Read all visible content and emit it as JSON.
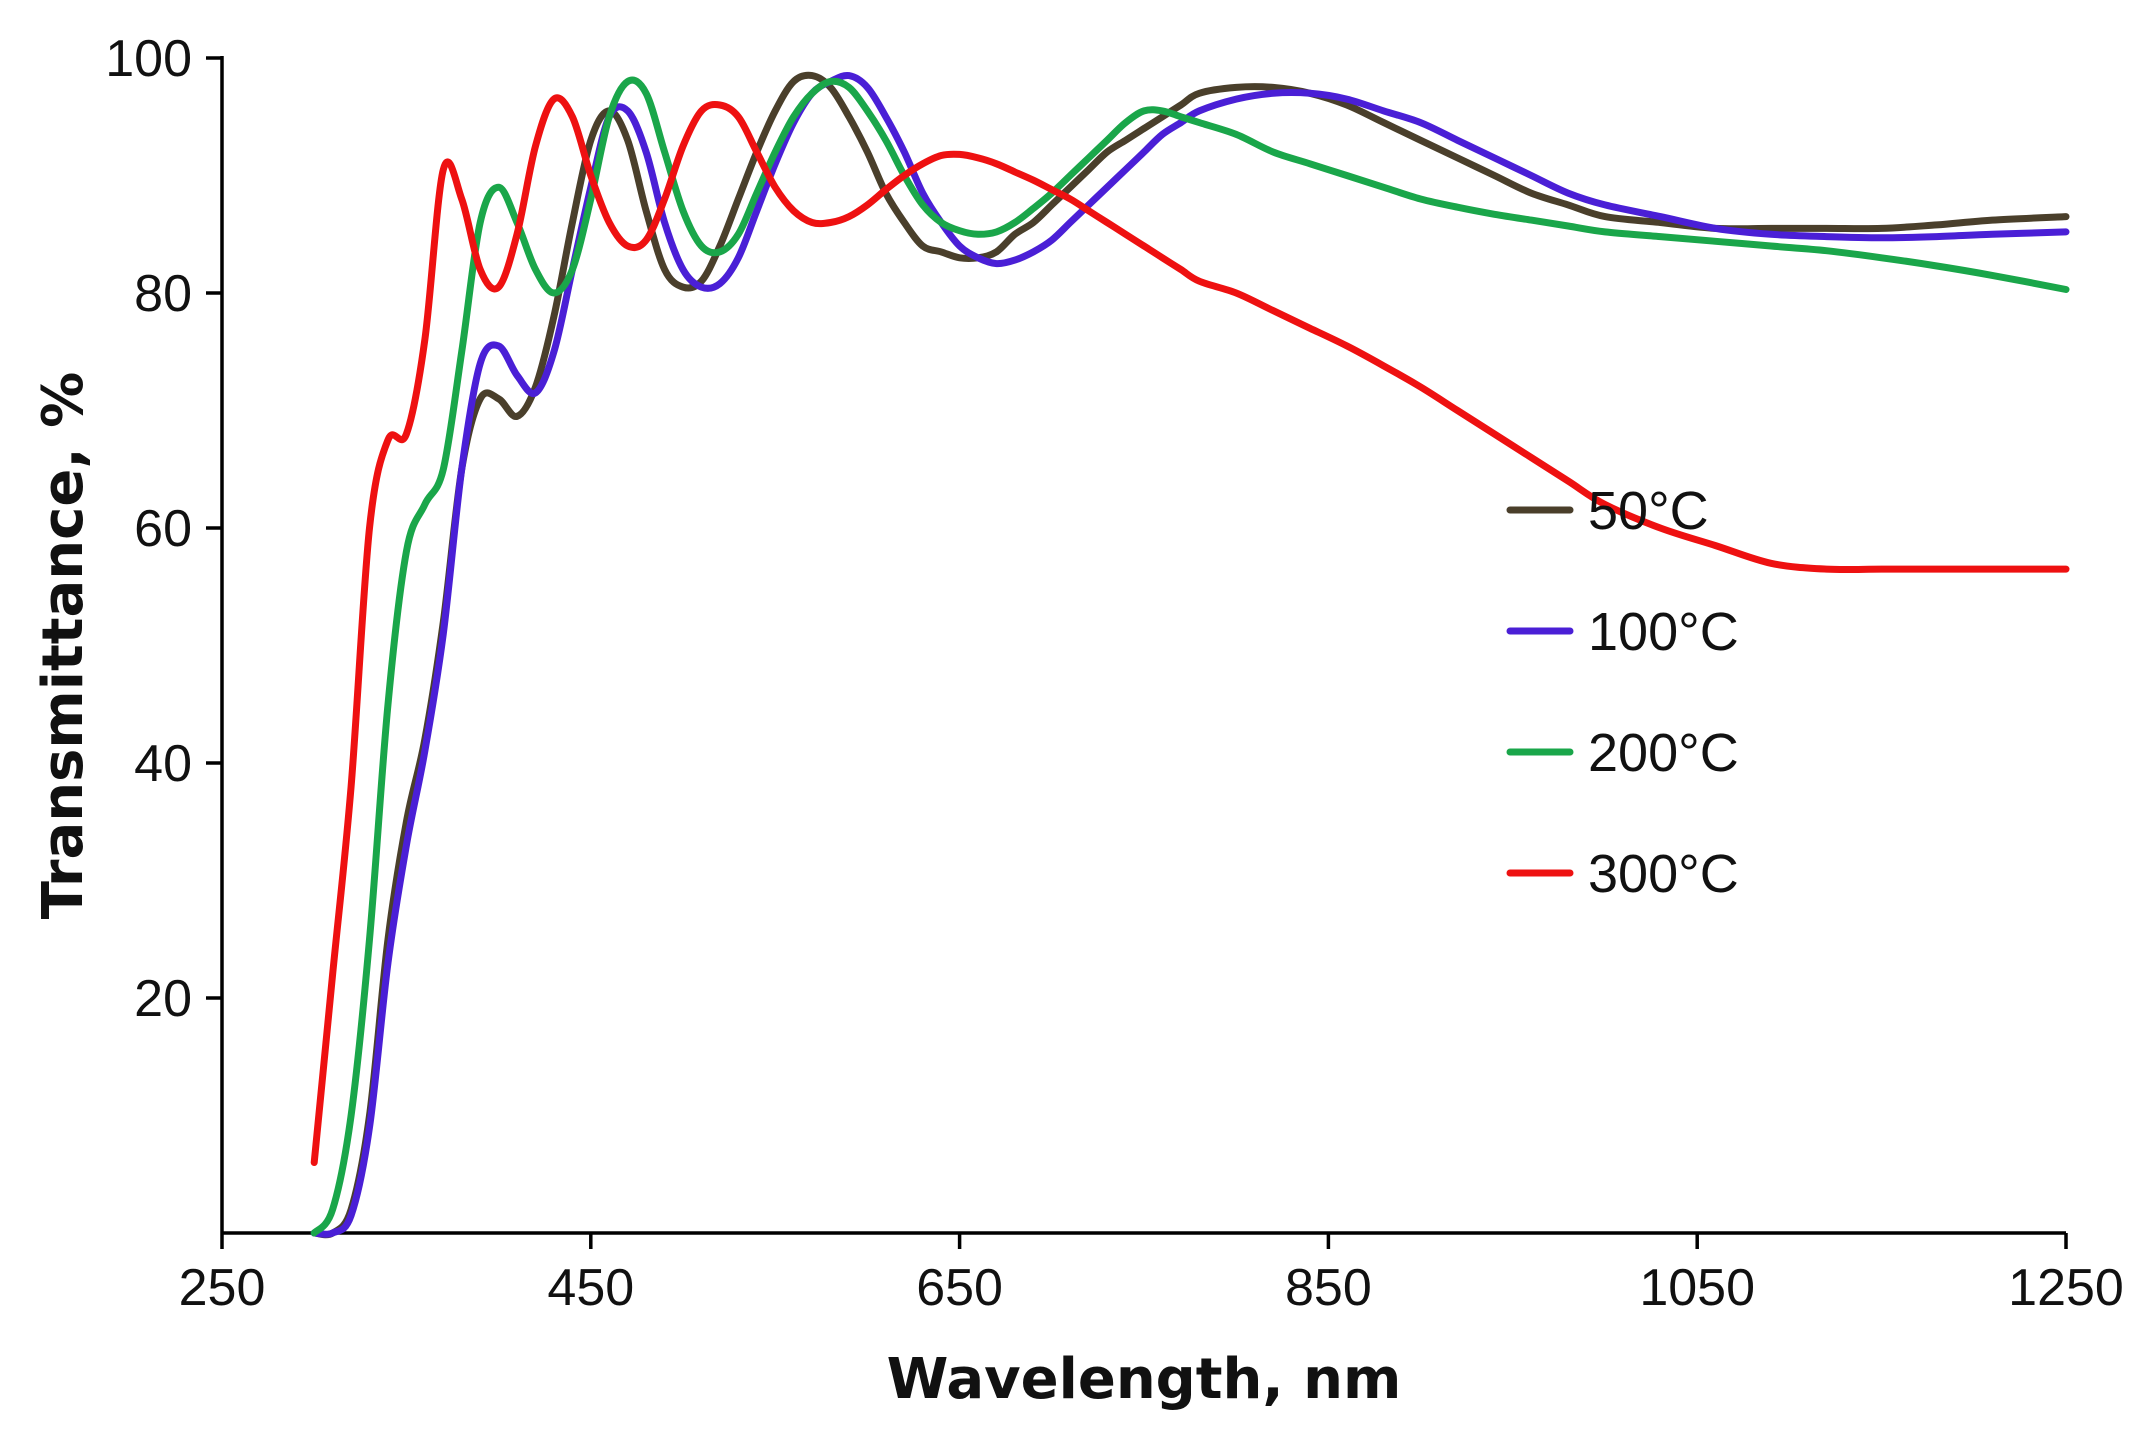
{
  "chart_data": {
    "type": "line",
    "title": "",
    "xlabel": "Wavelength, nm",
    "ylabel": "Transmittance, %",
    "xlim": [
      250,
      1250
    ],
    "ylim": [
      0,
      100
    ],
    "xticks": [
      250,
      450,
      650,
      850,
      1050,
      1250
    ],
    "yticks": [
      20,
      40,
      60,
      80,
      100
    ],
    "grid": false,
    "legend_position": "right-middle",
    "series": [
      {
        "name": "50°C",
        "color": "#4a3f2b",
        "x": [
          300,
          310,
          320,
          330,
          340,
          350,
          360,
          370,
          380,
          390,
          400,
          410,
          420,
          430,
          440,
          450,
          460,
          470,
          480,
          490,
          500,
          510,
          520,
          530,
          540,
          550,
          560,
          570,
          580,
          590,
          600,
          610,
          620,
          630,
          640,
          650,
          660,
          670,
          680,
          690,
          700,
          710,
          720,
          730,
          740,
          750,
          760,
          770,
          780,
          800,
          820,
          840,
          860,
          880,
          900,
          920,
          940,
          960,
          980,
          1000,
          1030,
          1060,
          1090,
          1120,
          1150,
          1180,
          1210,
          1250
        ],
        "y": [
          0,
          0,
          2,
          10,
          25,
          35,
          42,
          52,
          65,
          71,
          71,
          69.5,
          72,
          78,
          86,
          93,
          95.5,
          93,
          87,
          82,
          80.5,
          81,
          84,
          88,
          92,
          95.5,
          98,
          98.5,
          97.5,
          95,
          92,
          88.5,
          86,
          84,
          83.5,
          83,
          83,
          83.5,
          85,
          86,
          87.5,
          89,
          90.5,
          92,
          93,
          94,
          95,
          96,
          97,
          97.5,
          97.5,
          97,
          96,
          94.5,
          93,
          91.5,
          90,
          88.5,
          87.5,
          86.5,
          86,
          85.5,
          85.5,
          85.5,
          85.5,
          85.8,
          86.2,
          86.5
        ]
      },
      {
        "name": "100°C",
        "color": "#4a1fd6",
        "x": [
          300,
          310,
          320,
          330,
          340,
          350,
          360,
          370,
          380,
          390,
          400,
          410,
          420,
          430,
          440,
          450,
          460,
          470,
          480,
          490,
          500,
          510,
          520,
          530,
          540,
          550,
          560,
          570,
          580,
          590,
          600,
          610,
          620,
          630,
          640,
          650,
          660,
          670,
          680,
          690,
          700,
          710,
          720,
          730,
          740,
          750,
          760,
          770,
          780,
          800,
          820,
          840,
          860,
          880,
          900,
          920,
          940,
          960,
          980,
          1000,
          1030,
          1060,
          1090,
          1120,
          1150,
          1180,
          1210,
          1250
        ],
        "y": [
          0,
          0,
          1.5,
          9,
          23,
          33,
          41,
          51,
          65,
          74,
          75.5,
          73,
          71.5,
          75,
          82,
          89,
          95,
          95.5,
          92,
          86,
          82,
          80.5,
          80.8,
          83,
          87,
          91,
          94.5,
          97,
          98,
          98.5,
          97.5,
          95,
          92,
          88.5,
          86,
          84,
          83,
          82.5,
          82.8,
          83.5,
          84.5,
          86,
          87.5,
          89,
          90.5,
          92,
          93.5,
          94.5,
          95.5,
          96.5,
          97,
          97,
          96.5,
          95.5,
          94.5,
          93,
          91.5,
          90,
          88.5,
          87.5,
          86.5,
          85.5,
          85,
          84.8,
          84.7,
          84.8,
          85,
          85.2
        ]
      },
      {
        "name": "200°C",
        "color": "#1aa64a",
        "x": [
          300,
          310,
          320,
          330,
          340,
          350,
          360,
          370,
          380,
          390,
          400,
          410,
          420,
          430,
          440,
          450,
          460,
          470,
          480,
          490,
          500,
          510,
          520,
          530,
          540,
          550,
          560,
          570,
          580,
          590,
          600,
          610,
          620,
          630,
          640,
          650,
          660,
          670,
          680,
          690,
          700,
          710,
          720,
          730,
          740,
          750,
          760,
          770,
          780,
          800,
          820,
          840,
          860,
          880,
          900,
          920,
          940,
          960,
          980,
          1000,
          1030,
          1060,
          1090,
          1120,
          1150,
          1180,
          1210,
          1250
        ],
        "y": [
          0,
          2,
          10,
          25,
          45,
          58,
          62,
          65,
          75,
          86,
          89,
          86,
          82,
          80,
          82,
          88,
          95,
          98,
          97,
          92,
          87,
          84,
          83.5,
          85,
          88.5,
          92,
          95,
          97,
          98,
          97.5,
          95.5,
          93,
          90,
          87.5,
          86,
          85.3,
          85,
          85.2,
          86,
          87.2,
          88.5,
          90,
          91.5,
          93,
          94.5,
          95.5,
          95.5,
          95,
          94.5,
          93.5,
          92,
          91,
          90,
          89,
          88,
          87.3,
          86.7,
          86.2,
          85.7,
          85.2,
          84.8,
          84.4,
          84,
          83.6,
          83,
          82.3,
          81.5,
          80.3
        ]
      },
      {
        "name": "300°C",
        "color": "#ee1111",
        "x": [
          300,
          310,
          320,
          330,
          340,
          350,
          360,
          370,
          380,
          390,
          400,
          410,
          420,
          430,
          440,
          450,
          460,
          470,
          480,
          490,
          500,
          510,
          520,
          530,
          540,
          550,
          560,
          570,
          580,
          590,
          600,
          610,
          620,
          630,
          640,
          650,
          660,
          670,
          680,
          690,
          700,
          710,
          720,
          730,
          740,
          750,
          760,
          770,
          780,
          800,
          820,
          840,
          860,
          880,
          900,
          920,
          940,
          960,
          980,
          1000,
          1030,
          1060,
          1090,
          1120,
          1150,
          1180,
          1210,
          1250
        ],
        "y": [
          6,
          22,
          38,
          60,
          67.5,
          68,
          76,
          90.5,
          88,
          82,
          80.5,
          85,
          92.5,
          96.5,
          95,
          90,
          86,
          84,
          84.5,
          88,
          92.5,
          95.5,
          96,
          95,
          92,
          89,
          87,
          86,
          86,
          86.5,
          87.5,
          88.8,
          90,
          91,
          91.7,
          91.8,
          91.5,
          91,
          90.3,
          89.6,
          88.8,
          88,
          87,
          86,
          85,
          84,
          83,
          82,
          81,
          80,
          78.5,
          77,
          75.5,
          73.8,
          72,
          70,
          68,
          66,
          64,
          62,
          60,
          58.5,
          57,
          56.5,
          56.5,
          56.5,
          56.5,
          56.5
        ]
      }
    ]
  }
}
